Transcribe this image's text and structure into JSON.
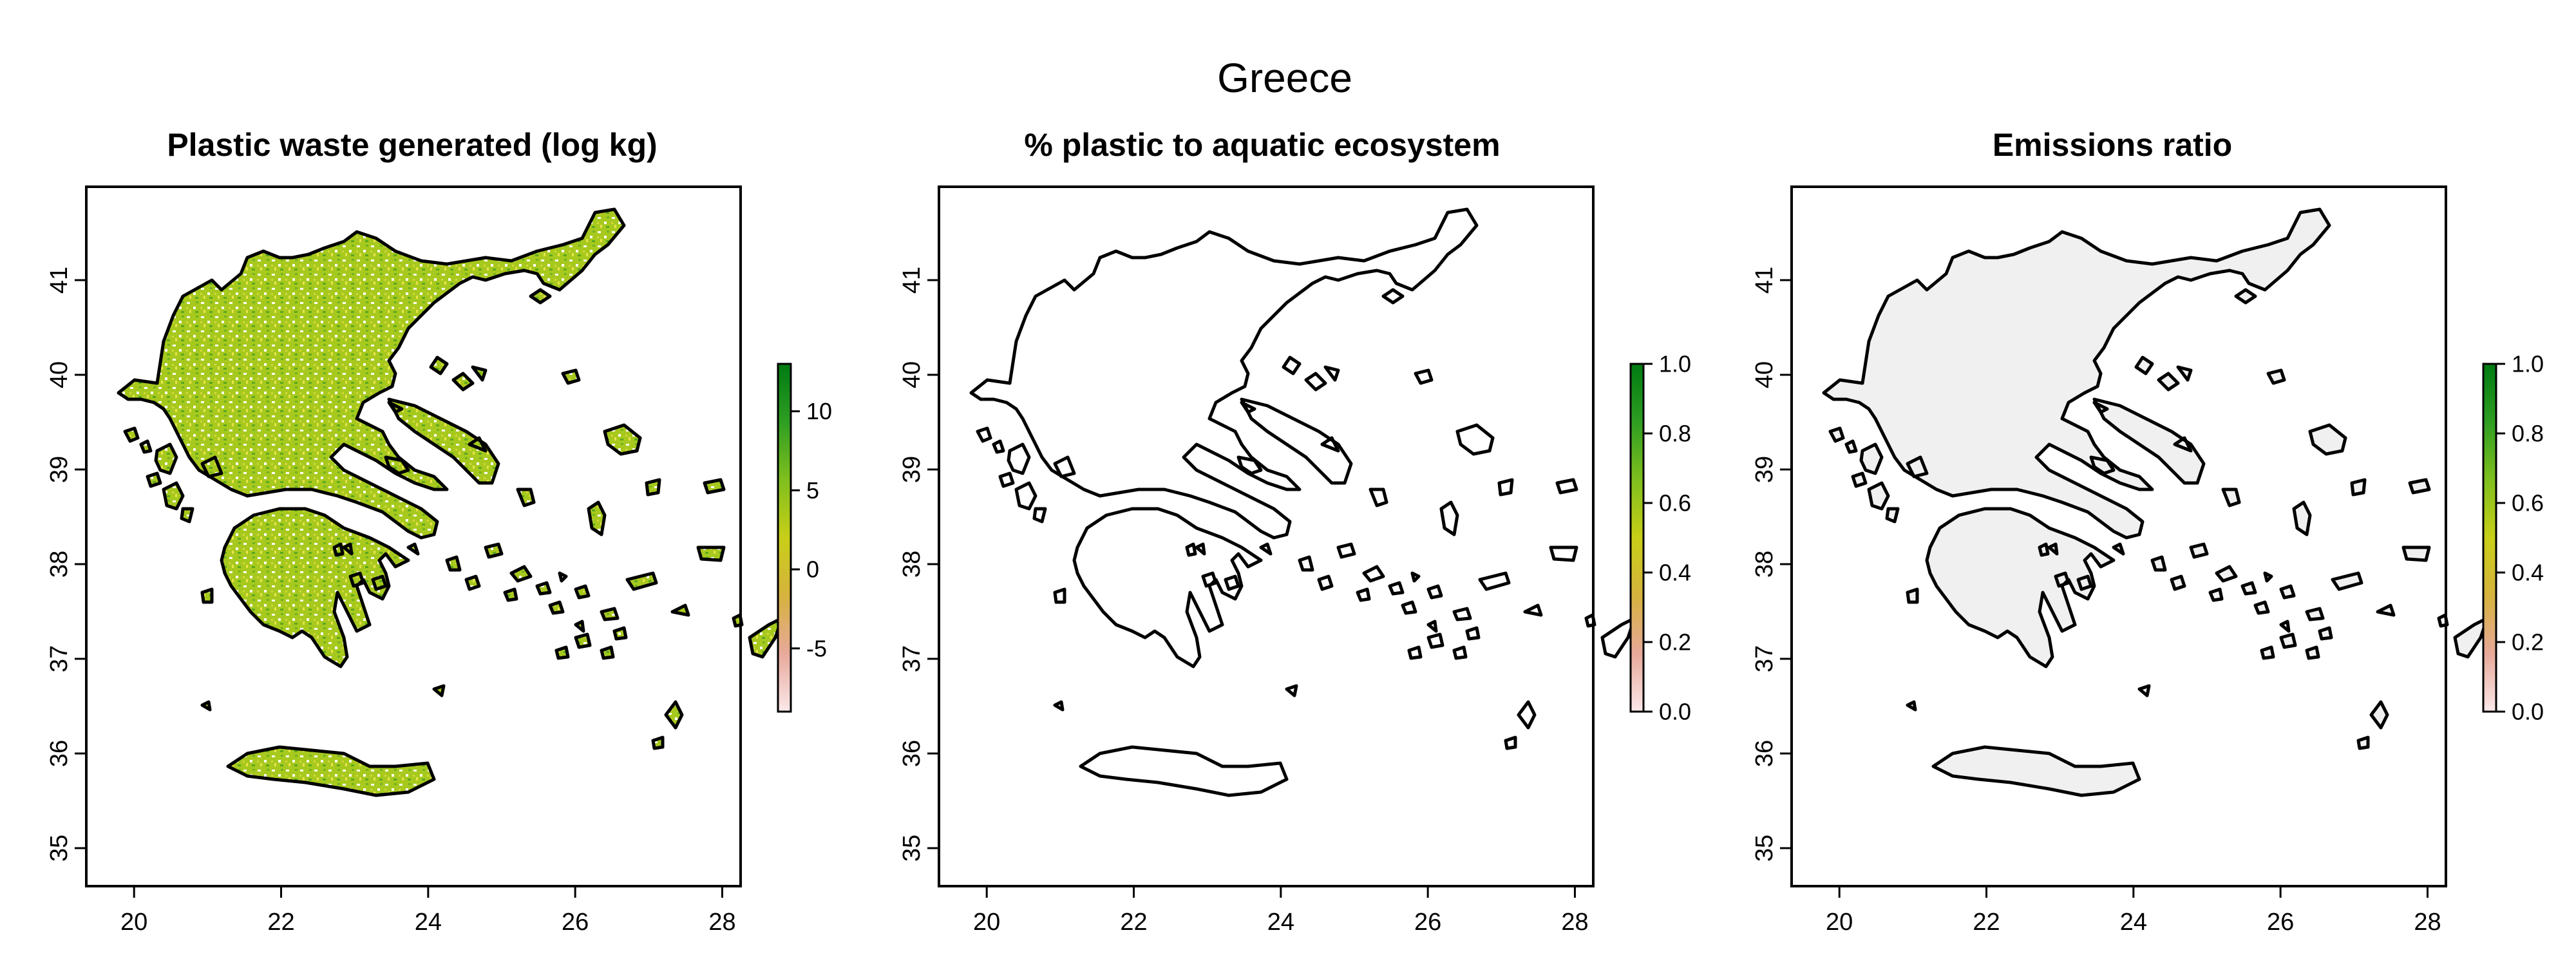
{
  "figure": {
    "title": "Greece"
  },
  "panels": [
    {
      "id": "waste",
      "title": "Plastic waste generated (log kg)",
      "legend_ticks": [
        "10",
        "5",
        "0",
        "-5"
      ],
      "legend_range": [
        -9,
        13
      ],
      "legend_colors": [
        "#fbe8ea",
        "#e7a99a",
        "#d6b23e",
        "#c8cf18",
        "#7fbf1e",
        "#2e9e22",
        "#007a12"
      ]
    },
    {
      "id": "aquatic",
      "title": "% plastic to aquatic ecosystem",
      "legend_ticks": [
        "1.0",
        "0.8",
        "0.6",
        "0.4",
        "0.2",
        "0.0"
      ],
      "legend_range": [
        0,
        1
      ],
      "legend_colors": [
        "#fbe8ea",
        "#e7a99a",
        "#d6b23e",
        "#c8cf18",
        "#7fbf1e",
        "#2e9e22",
        "#007a12"
      ]
    },
    {
      "id": "emissions",
      "title": "Emissions ratio",
      "legend_ticks": [
        "1.0",
        "0.8",
        "0.6",
        "0.4",
        "0.2",
        "0.0"
      ],
      "legend_range": [
        0,
        1
      ],
      "legend_colors": [
        "#fbe8ea",
        "#e7a99a",
        "#d6b23e",
        "#c8cf18",
        "#7fbf1e",
        "#2e9e22",
        "#007a12"
      ]
    }
  ],
  "axes": {
    "x_ticks": [
      "20",
      "22",
      "24",
      "26",
      "28"
    ],
    "y_ticks": [
      "41",
      "40",
      "39",
      "38",
      "37",
      "36",
      "35"
    ]
  }
}
